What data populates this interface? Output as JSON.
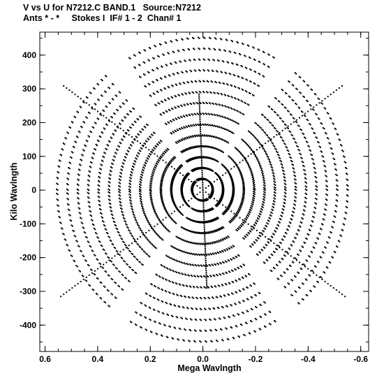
{
  "chart_data": {
    "type": "scatter",
    "title": "V vs U for N7212.C BAND.1   Source:N7212",
    "subtitle": "Ants * - *     Stokes I  IF# 1 - 2  Chan# 1",
    "xlabel": "Mega Wavlngth",
    "ylabel": "Kilo Wavlngth",
    "xlim": [
      0.62,
      -0.63
    ],
    "ylim": [
      -478,
      468
    ],
    "x_ticks": [
      0.6,
      0.4,
      0.2,
      0.0,
      -0.2,
      -0.4,
      -0.6
    ],
    "x_tick_labels": [
      "0.6",
      "0.4",
      "0.2",
      "0.0",
      "-0.2",
      "-0.4",
      "-0.6"
    ],
    "y_ticks": [
      400,
      300,
      200,
      100,
      0,
      -100,
      -200,
      -300,
      -400
    ],
    "y_tick_labels": [
      "400",
      "300",
      "200",
      "100",
      "0",
      "-100",
      "-200",
      "-300",
      "-400"
    ],
    "grid": false,
    "marker_color": "#000000",
    "uv_pattern": {
      "description_arms": [
        {
          "angle_deg": 90,
          "max_u": 0.015,
          "max_v": 290
        },
        {
          "angle_deg": 30,
          "max_u": 0.54,
          "max_v": 315
        },
        {
          "angle_deg": 150,
          "max_u": -0.54,
          "max_v": 315
        }
      ],
      "track_count": 14,
      "track_max_radius_u": 0.6,
      "track_max_radius_v": 450
    }
  }
}
